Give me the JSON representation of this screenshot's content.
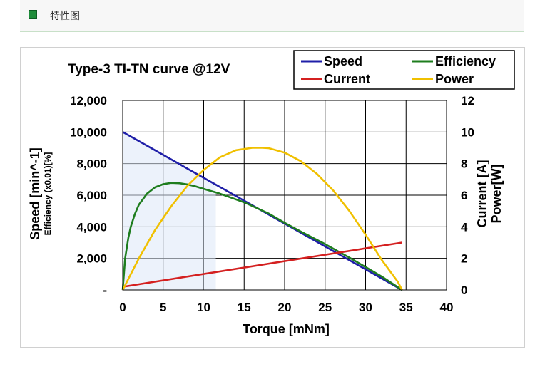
{
  "header": {
    "title": "特性图"
  },
  "chart_data": {
    "type": "line",
    "title": "Type-3 TI-TN curve @12V",
    "xlabel": "Torque [mNm]",
    "ylabel_left_main": "Speed [min^-1]",
    "ylabel_left_sub": "Efficiency (x0.01)[%]",
    "ylabel_right_1": "Current [A]",
    "ylabel_right_2": "Power[W]",
    "xlim": [
      0,
      40
    ],
    "ylim_left": [
      0,
      12000
    ],
    "ylim_right": [
      0,
      12
    ],
    "x_ticks": [
      "0",
      "5",
      "10",
      "15",
      "20",
      "25",
      "30",
      "35",
      "40"
    ],
    "y_left_ticks": [
      "-",
      "2,000",
      "4,000",
      "6,000",
      "8,000",
      "10,000",
      "12,000"
    ],
    "y_right_ticks": [
      "0",
      "2",
      "4",
      "6",
      "8",
      "10",
      "12"
    ],
    "grid": true,
    "legend_position": "top-right",
    "series": [
      {
        "name": "Speed",
        "color": "#1f1fa8",
        "axis": "left",
        "x": [
          0,
          34.5
        ],
        "y": [
          10000,
          0
        ]
      },
      {
        "name": "Efficiency",
        "color": "#1e7d1e",
        "axis": "left",
        "x": [
          0,
          0.3,
          0.7,
          1,
          1.5,
          2,
          3,
          4,
          5,
          6,
          7,
          8,
          9,
          10,
          12,
          15,
          18,
          20,
          22,
          25,
          28,
          30,
          32,
          34.5
        ],
        "y": [
          0,
          2000,
          3300,
          4000,
          4800,
          5400,
          6100,
          6500,
          6700,
          6780,
          6760,
          6680,
          6560,
          6400,
          6100,
          5550,
          4850,
          4250,
          3700,
          2900,
          2050,
          1450,
          850,
          0
        ]
      },
      {
        "name": "Current",
        "color": "#d42020",
        "axis": "right",
        "x": [
          0,
          34.5
        ],
        "y": [
          0.2,
          3.0
        ]
      },
      {
        "name": "Power",
        "color": "#f0c000",
        "axis": "right",
        "x": [
          0,
          2,
          4,
          6,
          8,
          10,
          12,
          14,
          16,
          17.25,
          18,
          20,
          22,
          24,
          26,
          28,
          30,
          32,
          34,
          34.5
        ],
        "y": [
          0,
          2.0,
          3.8,
          5.3,
          6.6,
          7.6,
          8.4,
          8.85,
          9.0,
          9.0,
          8.98,
          8.7,
          8.15,
          7.35,
          6.3,
          5.0,
          3.5,
          1.9,
          0.5,
          0
        ]
      }
    ]
  }
}
